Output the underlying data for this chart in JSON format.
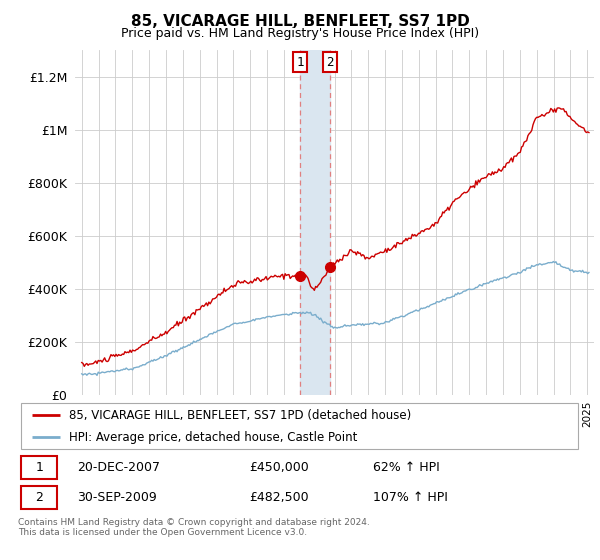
{
  "title": "85, VICARAGE HILL, BENFLEET, SS7 1PD",
  "subtitle": "Price paid vs. HM Land Registry's House Price Index (HPI)",
  "legend_line1": "85, VICARAGE HILL, BENFLEET, SS7 1PD (detached house)",
  "legend_line2": "HPI: Average price, detached house, Castle Point",
  "transaction1_date": "20-DEC-2007",
  "transaction1_price": 450000,
  "transaction1_hpi": "62% ↑ HPI",
  "transaction2_date": "30-SEP-2009",
  "transaction2_price": 482500,
  "transaction2_hpi": "107% ↑ HPI",
  "footer": "Contains HM Land Registry data © Crown copyright and database right 2024.\nThis data is licensed under the Open Government Licence v3.0.",
  "red_color": "#cc0000",
  "blue_color": "#7aadcc",
  "highlight_color": "#dae6f0",
  "ylim": [
    0,
    1300000
  ],
  "yticks": [
    0,
    200000,
    400000,
    600000,
    800000,
    1000000,
    1200000
  ],
  "ytick_labels": [
    "£0",
    "£200K",
    "£400K",
    "£600K",
    "£800K",
    "£1M",
    "£1.2M"
  ],
  "t1_year": 2007.96,
  "t2_year": 2009.75,
  "t1_price": 450000,
  "t2_price": 482500
}
